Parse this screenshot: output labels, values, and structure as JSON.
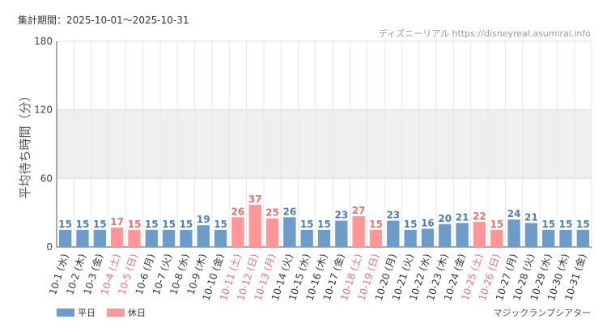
{
  "header": {
    "period_label": "集計期間：2025-10-01〜2025-10-31",
    "source": "ディズニーリアル https://disneyreal.asumirai.info",
    "attraction": "マジックランプシアター"
  },
  "legend": {
    "weekday_label": "平日",
    "holiday_label": "休日"
  },
  "colors": {
    "weekday": "#6f9bc8",
    "holiday": "#ff9799",
    "weekday_text": "#4d7cb3",
    "holiday_text": "#ee6e73",
    "band": "#efefef",
    "grid": "#e6e6e6"
  },
  "chart_data": {
    "type": "bar",
    "ylabel": "平均待ち時間（分）",
    "xlabel": "",
    "ylim": [
      0,
      180
    ],
    "yticks": [
      0,
      60,
      120,
      180
    ],
    "shaded_band": [
      60,
      120
    ],
    "categories": [
      "10-1 (水)",
      "10-2 (木)",
      "10-3 (金)",
      "10-4 (土)",
      "10-5 (日)",
      "10-6 (月)",
      "10-7 (火)",
      "10-8 (水)",
      "10-9 (木)",
      "10-10 (金)",
      "10-11 (土)",
      "10-12 (日)",
      "10-13 (月)",
      "10-14 (火)",
      "10-15 (水)",
      "10-16 (木)",
      "10-17 (金)",
      "10-18 (土)",
      "10-19 (日)",
      "10-20 (月)",
      "10-21 (火)",
      "10-22 (水)",
      "10-23 (木)",
      "10-24 (金)",
      "10-25 (土)",
      "10-26 (日)",
      "10-27 (月)",
      "10-28 (火)",
      "10-29 (水)",
      "10-30 (木)",
      "10-31 (金)"
    ],
    "values": [
      15,
      15,
      15,
      17,
      15,
      15,
      15,
      15,
      19,
      15,
      26,
      37,
      25,
      26,
      15,
      15,
      23,
      27,
      15,
      23,
      15,
      16,
      20,
      21,
      22,
      15,
      24,
      21,
      15,
      15,
      15
    ],
    "day_type": [
      "weekday",
      "weekday",
      "weekday",
      "holiday",
      "holiday",
      "weekday",
      "weekday",
      "weekday",
      "weekday",
      "weekday",
      "holiday",
      "holiday",
      "holiday",
      "weekday",
      "weekday",
      "weekday",
      "weekday",
      "holiday",
      "holiday",
      "weekday",
      "weekday",
      "weekday",
      "weekday",
      "weekday",
      "holiday",
      "holiday",
      "weekday",
      "weekday",
      "weekday",
      "weekday",
      "weekday"
    ]
  }
}
